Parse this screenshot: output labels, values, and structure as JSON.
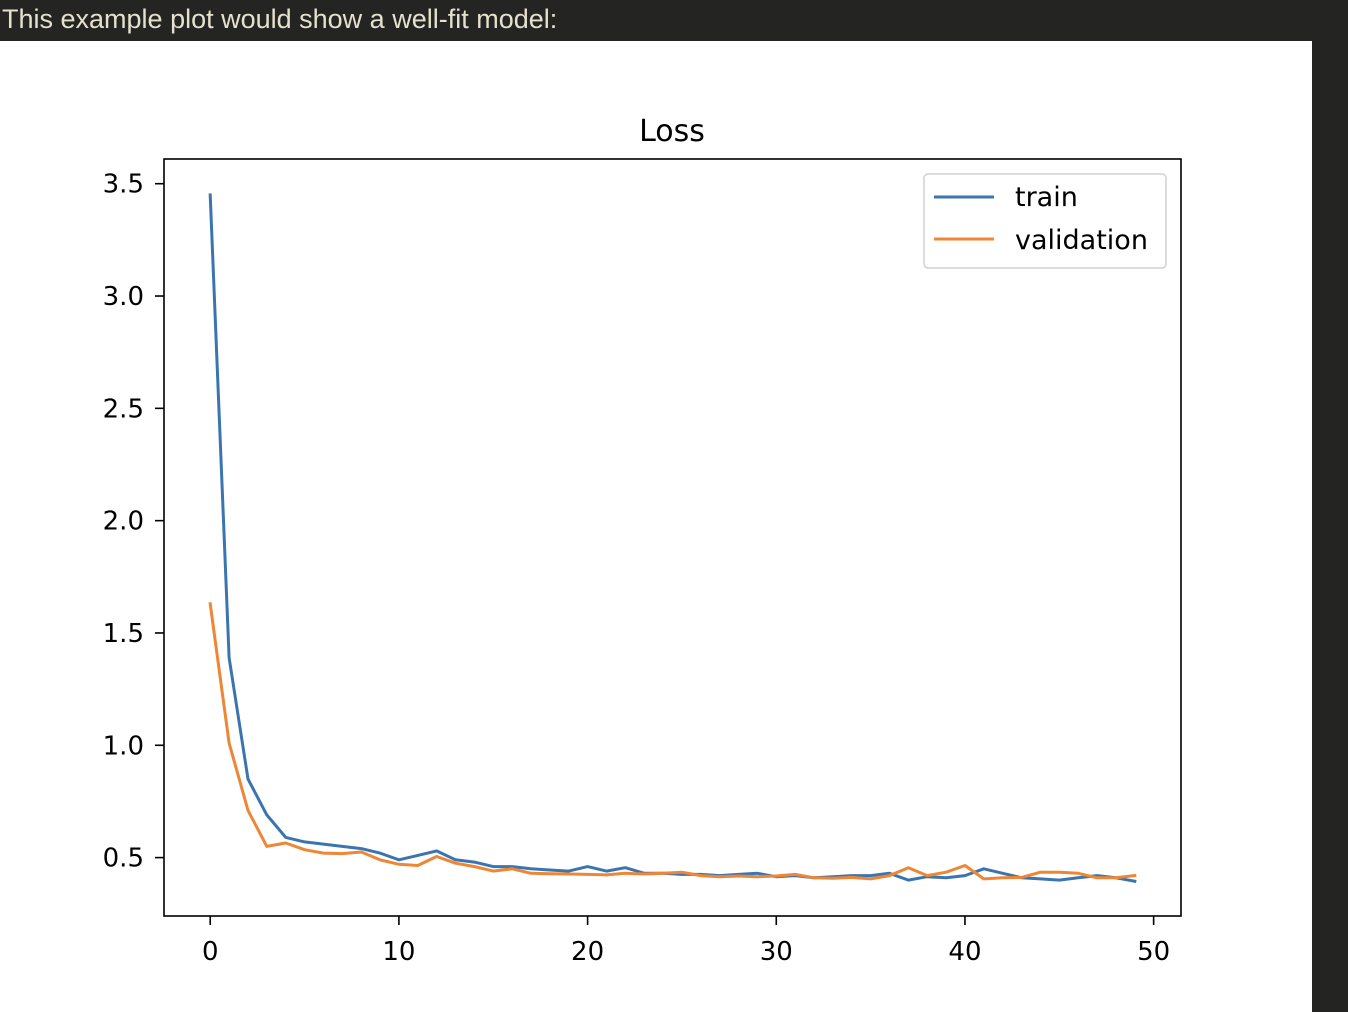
{
  "caption": "This example plot would show a well-fit model:",
  "chart_data": {
    "type": "line",
    "title": "Loss",
    "xlabel": "",
    "ylabel": "",
    "xlim": [
      -2.45,
      51.45
    ],
    "ylim": [
      0.24,
      3.61
    ],
    "xticks": [
      0,
      10,
      20,
      30,
      40,
      50
    ],
    "yticks": [
      0.5,
      1.0,
      1.5,
      2.0,
      2.5,
      3.0,
      3.5
    ],
    "xtick_labels": [
      "0",
      "10",
      "20",
      "30",
      "40",
      "50"
    ],
    "ytick_labels": [
      "0.5",
      "1.0",
      "1.5",
      "2.0",
      "2.5",
      "3.0",
      "3.5"
    ],
    "legend_position": "upper-right",
    "grid": false,
    "x": [
      0,
      1,
      2,
      3,
      4,
      5,
      6,
      7,
      8,
      9,
      10,
      11,
      12,
      13,
      14,
      15,
      16,
      17,
      18,
      19,
      20,
      21,
      22,
      23,
      24,
      25,
      26,
      27,
      28,
      29,
      30,
      31,
      32,
      33,
      34,
      35,
      36,
      37,
      38,
      39,
      40,
      41,
      42,
      43,
      44,
      45,
      46,
      47,
      48,
      49
    ],
    "series": [
      {
        "name": "train",
        "color": "#3a75b0",
        "values": [
          3.45,
          1.39,
          0.85,
          0.69,
          0.59,
          0.57,
          0.56,
          0.55,
          0.54,
          0.52,
          0.49,
          0.51,
          0.53,
          0.49,
          0.48,
          0.46,
          0.46,
          0.45,
          0.445,
          0.44,
          0.46,
          0.44,
          0.455,
          0.43,
          0.43,
          0.425,
          0.425,
          0.42,
          0.425,
          0.43,
          0.415,
          0.42,
          0.41,
          0.415,
          0.42,
          0.42,
          0.43,
          0.4,
          0.415,
          0.41,
          0.42,
          0.45,
          0.43,
          0.41,
          0.405,
          0.4,
          0.41,
          0.42,
          0.41,
          0.395
        ]
      },
      {
        "name": "validation",
        "color": "#ef8636",
        "values": [
          1.63,
          1.01,
          0.71,
          0.55,
          0.565,
          0.535,
          0.52,
          0.518,
          0.525,
          0.49,
          0.47,
          0.465,
          0.505,
          0.475,
          0.46,
          0.44,
          0.45,
          0.43,
          0.428,
          0.427,
          0.425,
          0.423,
          0.43,
          0.427,
          0.43,
          0.435,
          0.42,
          0.415,
          0.418,
          0.415,
          0.418,
          0.425,
          0.41,
          0.408,
          0.412,
          0.405,
          0.42,
          0.455,
          0.42,
          0.435,
          0.465,
          0.405,
          0.41,
          0.412,
          0.435,
          0.435,
          0.43,
          0.41,
          0.41,
          0.42
        ]
      }
    ]
  }
}
